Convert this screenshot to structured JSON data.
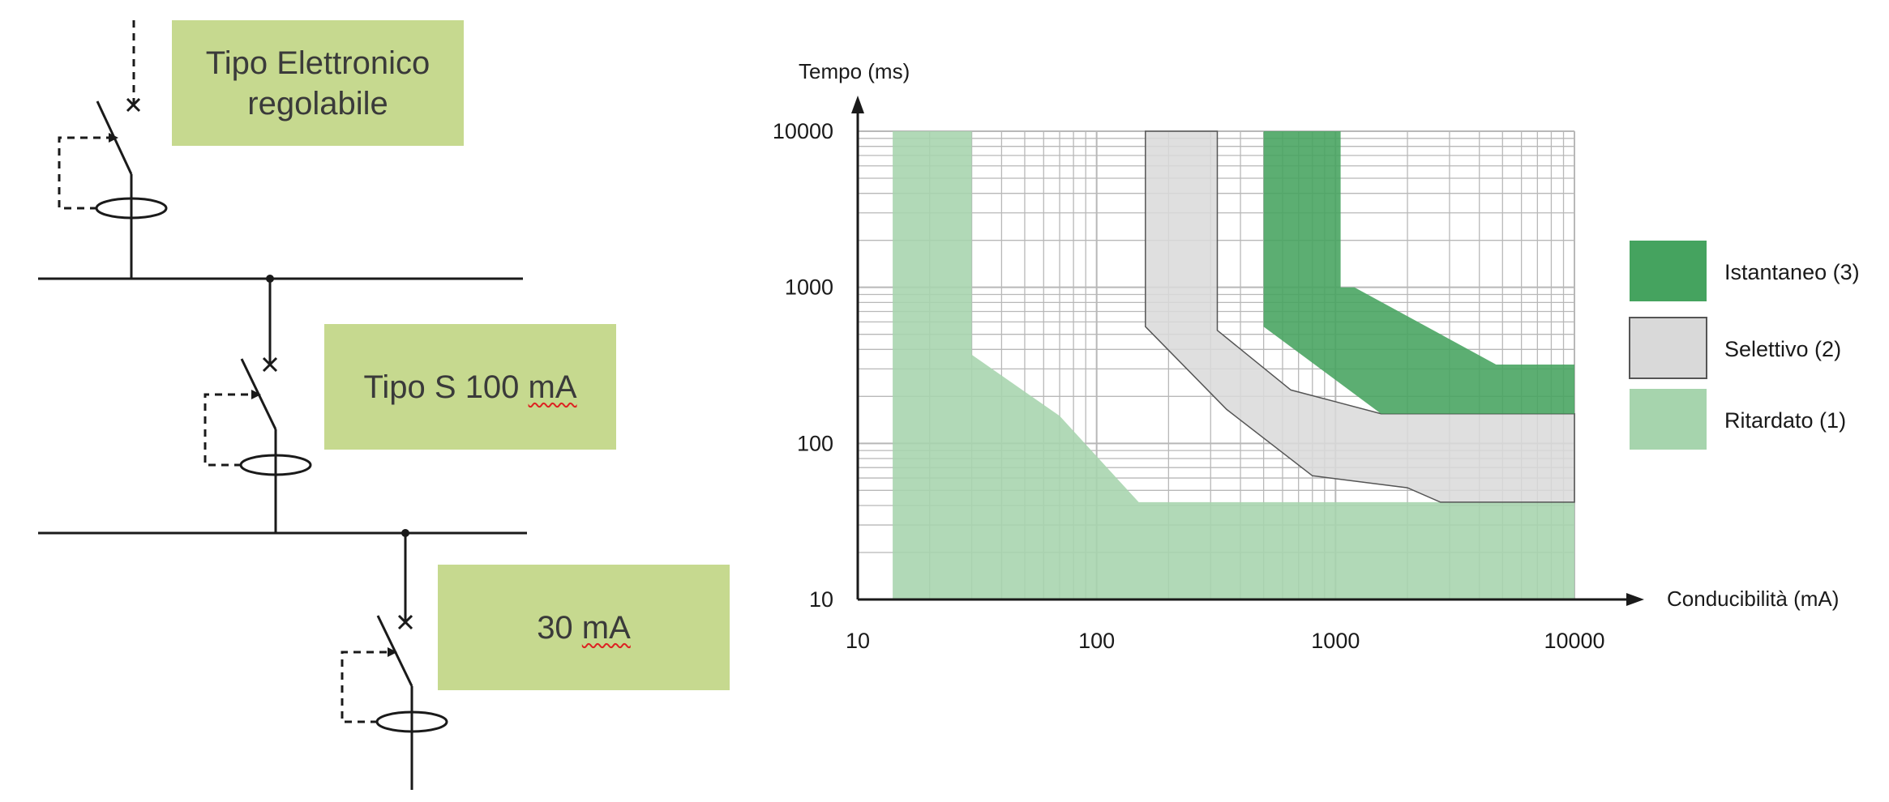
{
  "colors": {
    "box_fill": "#c6d98f",
    "istantaneo": "#45a35f",
    "selettivo": "#d9d9d9",
    "ritardato": "#a6d4ad",
    "grid": "#b8b8b8",
    "axis": "#1a1a1a"
  },
  "diagram": {
    "box1": {
      "line1": "Tipo Elettronico",
      "line2": "regolabile"
    },
    "box2": {
      "prefix": "Tipo S 100 ",
      "unit": "mA"
    },
    "box3": {
      "prefix": "30 ",
      "unit": "mA"
    }
  },
  "chart_data": {
    "type": "area",
    "title": "",
    "xlabel": "Conducibilità (mA)",
    "ylabel": "Tempo (ms)",
    "x_scale": "log",
    "y_scale": "log",
    "xlim": [
      10,
      10000
    ],
    "ylim": [
      10,
      10000
    ],
    "grid": true,
    "legend_position": "right",
    "x_ticks": [
      "10",
      "100",
      "1000",
      "10000"
    ],
    "y_ticks": [
      "10",
      "100",
      "1000",
      "10000"
    ],
    "series": [
      {
        "name": "Ritardato (1)",
        "color": "#a6d4ad",
        "polygon": [
          [
            14,
            10000
          ],
          [
            30,
            10000
          ],
          [
            30,
            370
          ],
          [
            70,
            150
          ],
          [
            150,
            42
          ],
          [
            10000,
            42
          ],
          [
            10000,
            10
          ],
          [
            14,
            10
          ]
        ]
      },
      {
        "name": "Selettivo (2)",
        "color": "#d9d9d9",
        "polygon": [
          [
            160,
            10000
          ],
          [
            320,
            10000
          ],
          [
            320,
            530
          ],
          [
            650,
            220
          ],
          [
            1550,
            155
          ],
          [
            10000,
            155
          ],
          [
            10000,
            42
          ],
          [
            2750,
            42
          ],
          [
            2000,
            52
          ],
          [
            800,
            62
          ],
          [
            350,
            165
          ],
          [
            160,
            560
          ]
        ]
      },
      {
        "name": "Istantaneo (3)",
        "color": "#45a35f",
        "polygon": [
          [
            500,
            10000
          ],
          [
            1050,
            10000
          ],
          [
            1050,
            1000
          ],
          [
            1200,
            1000
          ],
          [
            4700,
            320
          ],
          [
            10000,
            320
          ],
          [
            10000,
            155
          ],
          [
            1550,
            155
          ],
          [
            500,
            560
          ]
        ]
      }
    ]
  }
}
